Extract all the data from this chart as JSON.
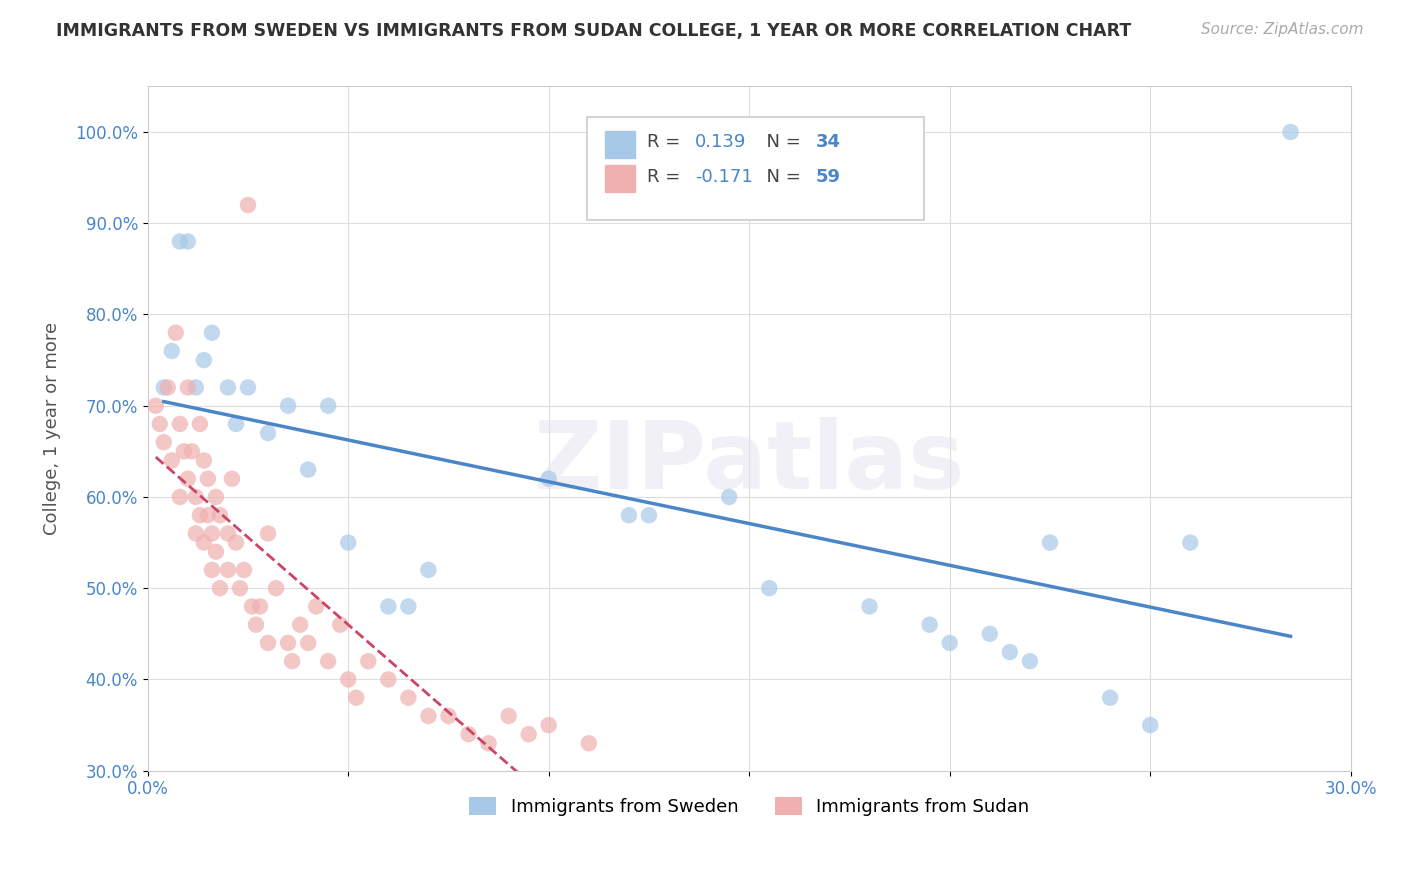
{
  "title": "IMMIGRANTS FROM SWEDEN VS IMMIGRANTS FROM SUDAN COLLEGE, 1 YEAR OR MORE CORRELATION CHART",
  "source": "Source: ZipAtlas.com",
  "ylabel": "College, 1 year or more",
  "watermark": "ZIPatlas",
  "xlim": [
    0.0,
    0.3
  ],
  "ylim": [
    0.3,
    1.05
  ],
  "x_ticks": [
    0.0,
    0.05,
    0.1,
    0.15,
    0.2,
    0.25,
    0.3
  ],
  "x_tick_labels": [
    "0.0%",
    "",
    "",
    "",
    "",
    "",
    "30.0%"
  ],
  "y_ticks": [
    0.3,
    0.4,
    0.5,
    0.6,
    0.7,
    0.8,
    0.9,
    1.0
  ],
  "y_tick_labels": [
    "30.0%",
    "40.0%",
    "50.0%",
    "60.0%",
    "70.0%",
    "80.0%",
    "90.0%",
    "100.0%"
  ],
  "sweden_color": "#a8c8e8",
  "sudan_color": "#f0b0b0",
  "sweden_line_color": "#4a86c8",
  "sudan_line_color": "#cc4466",
  "tick_color": "#4a86c8",
  "R_sweden": 0.139,
  "N_sweden": 34,
  "R_sudan": -0.171,
  "N_sudan": 59,
  "legend_label_sweden": "Immigrants from Sweden",
  "legend_label_sudan": "Immigrants from Sudan",
  "sweden_scatter": [
    [
      0.004,
      0.72
    ],
    [
      0.006,
      0.76
    ],
    [
      0.008,
      0.88
    ],
    [
      0.01,
      0.88
    ],
    [
      0.012,
      0.72
    ],
    [
      0.014,
      0.75
    ],
    [
      0.016,
      0.78
    ],
    [
      0.02,
      0.72
    ],
    [
      0.022,
      0.68
    ],
    [
      0.025,
      0.72
    ],
    [
      0.03,
      0.67
    ],
    [
      0.035,
      0.7
    ],
    [
      0.04,
      0.63
    ],
    [
      0.045,
      0.7
    ],
    [
      0.05,
      0.55
    ],
    [
      0.06,
      0.48
    ],
    [
      0.065,
      0.48
    ],
    [
      0.07,
      0.52
    ],
    [
      0.1,
      0.62
    ],
    [
      0.12,
      0.58
    ],
    [
      0.125,
      0.58
    ],
    [
      0.145,
      0.6
    ],
    [
      0.155,
      0.5
    ],
    [
      0.18,
      0.48
    ],
    [
      0.195,
      0.46
    ],
    [
      0.2,
      0.44
    ],
    [
      0.21,
      0.45
    ],
    [
      0.215,
      0.43
    ],
    [
      0.22,
      0.42
    ],
    [
      0.225,
      0.55
    ],
    [
      0.24,
      0.38
    ],
    [
      0.25,
      0.35
    ],
    [
      0.26,
      0.55
    ],
    [
      0.285,
      1.0
    ]
  ],
  "sudan_scatter": [
    [
      0.002,
      0.7
    ],
    [
      0.003,
      0.68
    ],
    [
      0.004,
      0.66
    ],
    [
      0.005,
      0.72
    ],
    [
      0.006,
      0.64
    ],
    [
      0.007,
      0.78
    ],
    [
      0.008,
      0.68
    ],
    [
      0.008,
      0.6
    ],
    [
      0.009,
      0.65
    ],
    [
      0.01,
      0.72
    ],
    [
      0.01,
      0.62
    ],
    [
      0.011,
      0.65
    ],
    [
      0.012,
      0.6
    ],
    [
      0.012,
      0.56
    ],
    [
      0.013,
      0.68
    ],
    [
      0.013,
      0.58
    ],
    [
      0.014,
      0.64
    ],
    [
      0.014,
      0.55
    ],
    [
      0.015,
      0.62
    ],
    [
      0.015,
      0.58
    ],
    [
      0.016,
      0.56
    ],
    [
      0.016,
      0.52
    ],
    [
      0.017,
      0.6
    ],
    [
      0.017,
      0.54
    ],
    [
      0.018,
      0.58
    ],
    [
      0.018,
      0.5
    ],
    [
      0.02,
      0.56
    ],
    [
      0.02,
      0.52
    ],
    [
      0.021,
      0.62
    ],
    [
      0.022,
      0.55
    ],
    [
      0.023,
      0.5
    ],
    [
      0.024,
      0.52
    ],
    [
      0.025,
      0.92
    ],
    [
      0.026,
      0.48
    ],
    [
      0.027,
      0.46
    ],
    [
      0.028,
      0.48
    ],
    [
      0.03,
      0.56
    ],
    [
      0.03,
      0.44
    ],
    [
      0.032,
      0.5
    ],
    [
      0.035,
      0.44
    ],
    [
      0.036,
      0.42
    ],
    [
      0.038,
      0.46
    ],
    [
      0.04,
      0.44
    ],
    [
      0.042,
      0.48
    ],
    [
      0.045,
      0.42
    ],
    [
      0.048,
      0.46
    ],
    [
      0.05,
      0.4
    ],
    [
      0.052,
      0.38
    ],
    [
      0.055,
      0.42
    ],
    [
      0.06,
      0.4
    ],
    [
      0.065,
      0.38
    ],
    [
      0.07,
      0.36
    ],
    [
      0.075,
      0.36
    ],
    [
      0.08,
      0.34
    ],
    [
      0.085,
      0.33
    ],
    [
      0.09,
      0.36
    ],
    [
      0.095,
      0.34
    ],
    [
      0.1,
      0.35
    ],
    [
      0.11,
      0.33
    ]
  ]
}
